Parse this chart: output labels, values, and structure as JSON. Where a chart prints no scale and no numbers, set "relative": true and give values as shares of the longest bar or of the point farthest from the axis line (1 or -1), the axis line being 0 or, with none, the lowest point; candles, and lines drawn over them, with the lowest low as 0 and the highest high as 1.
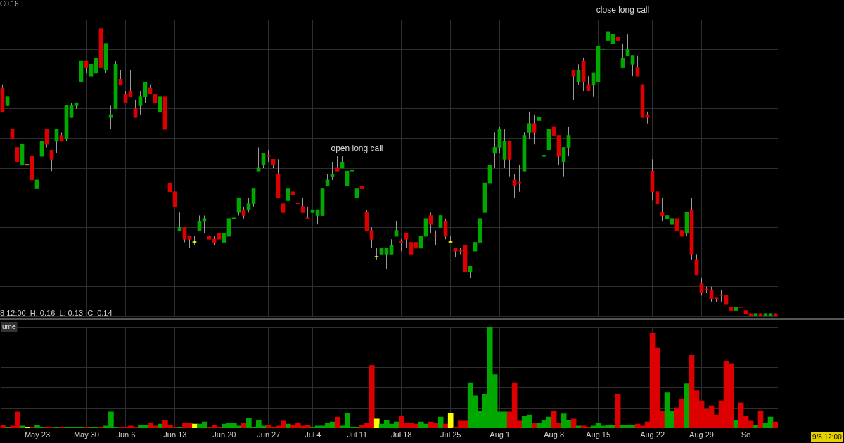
{
  "chart_data": [
    {
      "type": "candlestick",
      "relative": true,
      "tick_labels": false,
      "grid": true,
      "legend": false,
      "color": "#9a9a9a",
      "categories": [
        null,
        null,
        null,
        null,
        null,
        null,
        null,
        null,
        null,
        null,
        null,
        null,
        null,
        null,
        null,
        null,
        null,
        null,
        null,
        null,
        null,
        null,
        null,
        null,
        null,
        null,
        null,
        null,
        null,
        null,
        null,
        null,
        null,
        null,
        null,
        null,
        null,
        null,
        null,
        null,
        null,
        null,
        null,
        null,
        null,
        null,
        null,
        null,
        null,
        null,
        null,
        null,
        null,
        null,
        null,
        null,
        null,
        null,
        null,
        null,
        null,
        null,
        null,
        null,
        null,
        null,
        null,
        null,
        null,
        null,
        null,
        null,
        null,
        null,
        null,
        null,
        null,
        null,
        null,
        null,
        null,
        null,
        null,
        null,
        null,
        null,
        null,
        null,
        null,
        null,
        null,
        null,
        null,
        null,
        null,
        null,
        null,
        null,
        null,
        null,
        null,
        null,
        null,
        null,
        null,
        null,
        null,
        null,
        null,
        null,
        null,
        null,
        null,
        null,
        null,
        null,
        null,
        null,
        null,
        null,
        null,
        null,
        null,
        null,
        null,
        null,
        null,
        null,
        null,
        null,
        null,
        null,
        null,
        null,
        null,
        null,
        null,
        null,
        null,
        null,
        null,
        null,
        null,
        null,
        null,
        null,
        null,
        null,
        null,
        null,
        null,
        null,
        null,
        null,
        null,
        null,
        null,
        null
      ],
      "ohlc": [
        [
          0.77,
          0.78,
          0.69,
          0.69
        ],
        [
          0.71,
          0.74,
          0.71,
          0.74
        ],
        [
          0.63,
          0.63,
          0.6,
          0.6
        ],
        [
          0.57,
          0.57,
          0.52,
          0.52
        ],
        [
          0.51,
          0.58,
          0.51,
          0.58
        ],
        [
          0.51,
          0.51,
          0.49,
          0.51
        ],
        [
          0.54,
          0.56,
          0.46,
          0.46
        ],
        [
          0.43,
          0.46,
          0.4,
          0.46
        ],
        [
          0.54,
          0.59,
          0.54,
          0.59
        ],
        [
          0.63,
          0.63,
          0.57,
          0.58
        ],
        [
          0.56,
          0.56,
          0.49,
          0.53
        ],
        [
          0.59,
          0.63,
          0.55,
          0.63
        ],
        [
          0.61,
          0.62,
          0.59,
          0.59
        ],
        [
          0.6,
          0.71,
          0.59,
          0.71
        ],
        [
          0.67,
          0.72,
          0.67,
          0.71
        ],
        [
          0.71,
          0.72,
          0.7,
          0.72
        ],
        [
          0.79,
          0.86,
          0.79,
          0.86
        ],
        [
          0.86,
          0.86,
          0.82,
          0.84
        ],
        [
          0.81,
          0.85,
          0.79,
          0.85
        ],
        [
          0.82,
          0.87,
          0.82,
          0.87
        ],
        [
          0.97,
          0.99,
          0.82,
          0.84
        ],
        [
          0.83,
          0.92,
          0.82,
          0.92
        ],
        [
          0.67,
          0.71,
          0.63,
          0.68
        ],
        [
          0.7,
          0.86,
          0.7,
          0.85
        ],
        [
          0.8,
          0.83,
          0.78,
          0.78
        ],
        [
          0.75,
          0.76,
          0.72,
          0.72
        ],
        [
          0.76,
          0.83,
          0.74,
          0.74
        ],
        [
          0.7,
          0.73,
          0.67,
          0.67
        ],
        [
          0.71,
          0.76,
          0.68,
          0.74
        ],
        [
          0.74,
          0.79,
          0.72,
          0.79
        ],
        [
          0.77,
          0.78,
          0.75,
          0.75
        ],
        [
          0.75,
          0.76,
          0.7,
          0.72
        ],
        [
          0.69,
          0.77,
          0.67,
          0.74
        ],
        [
          0.74,
          0.75,
          0.63,
          0.63
        ],
        [
          0.45,
          0.46,
          0.4,
          0.42
        ],
        [
          0.42,
          0.42,
          0.37,
          0.37
        ],
        [
          0.29,
          0.35,
          0.29,
          0.3
        ],
        [
          0.3,
          0.3,
          0.25,
          0.26
        ],
        [
          0.27,
          0.27,
          0.23,
          0.26
        ],
        [
          0.25,
          0.27,
          0.24,
          0.25
        ],
        [
          0.29,
          0.34,
          0.29,
          0.32
        ],
        [
          0.32,
          0.34,
          0.28,
          0.33
        ],
        [
          0.27,
          0.27,
          0.26,
          0.26
        ],
        [
          0.26,
          0.27,
          0.24,
          0.25
        ],
        [
          0.28,
          0.3,
          0.25,
          0.26
        ],
        [
          0.25,
          0.3,
          0.25,
          0.28
        ],
        [
          0.27,
          0.34,
          0.27,
          0.33
        ],
        [
          0.33,
          0.35,
          0.31,
          0.33
        ],
        [
          0.35,
          0.4,
          0.34,
          0.4
        ],
        [
          0.36,
          0.37,
          0.33,
          0.34
        ],
        [
          0.36,
          0.4,
          0.35,
          0.38
        ],
        [
          0.38,
          0.43,
          0.37,
          0.43
        ],
        [
          0.49,
          0.57,
          0.49,
          0.5
        ],
        [
          0.51,
          0.55,
          0.5,
          0.55
        ],
        [
          0.54,
          0.56,
          0.52,
          0.54
        ],
        [
          0.53,
          0.53,
          0.5,
          0.51
        ],
        [
          0.48,
          0.53,
          0.4,
          0.4
        ],
        [
          0.38,
          0.39,
          0.35,
          0.35
        ],
        [
          0.39,
          0.45,
          0.39,
          0.43
        ],
        [
          0.42,
          0.43,
          0.4,
          0.41
        ],
        [
          0.38,
          0.4,
          0.32,
          0.38
        ],
        [
          0.37,
          0.4,
          0.35,
          0.35
        ],
        [
          0.33,
          0.37,
          0.33,
          0.33
        ],
        [
          0.35,
          0.36,
          0.35,
          0.36
        ],
        [
          0.34,
          0.36,
          0.31,
          0.36
        ],
        [
          0.34,
          0.43,
          0.34,
          0.43
        ],
        [
          0.44,
          0.48,
          0.44,
          0.46
        ],
        [
          0.47,
          0.52,
          0.46,
          0.48
        ],
        [
          0.5,
          0.54,
          0.49,
          0.49
        ],
        [
          0.5,
          0.54,
          0.5,
          0.52
        ],
        [
          0.44,
          0.49,
          0.41,
          0.49
        ],
        [
          0.49,
          0.49,
          0.45,
          0.49
        ],
        [
          0.4,
          0.44,
          0.39,
          0.43
        ],
        [
          0.44,
          0.44,
          0.43,
          0.43
        ],
        [
          0.35,
          0.36,
          0.29,
          0.29
        ],
        [
          0.29,
          0.3,
          0.23,
          0.26
        ],
        [
          0.2,
          0.23,
          0.19,
          0.2
        ],
        [
          0.21,
          0.23,
          0.21,
          0.23
        ],
        [
          0.21,
          0.23,
          0.16,
          0.23
        ],
        [
          0.21,
          0.26,
          0.21,
          0.24
        ],
        [
          0.27,
          0.32,
          0.27,
          0.29
        ],
        [
          0.25,
          0.26,
          0.22,
          0.25
        ],
        [
          0.28,
          0.28,
          0.23,
          0.26
        ],
        [
          0.25,
          0.26,
          0.2,
          0.21
        ],
        [
          0.25,
          0.25,
          0.19,
          0.23
        ],
        [
          0.23,
          0.28,
          0.23,
          0.27
        ],
        [
          0.27,
          0.33,
          0.27,
          0.33
        ],
        [
          0.34,
          0.35,
          0.28,
          0.31
        ],
        [
          0.27,
          0.29,
          0.24,
          0.27
        ],
        [
          0.3,
          0.34,
          0.3,
          0.34
        ],
        [
          0.32,
          0.33,
          0.26,
          0.27
        ],
        [
          0.25,
          0.27,
          0.25,
          0.25
        ],
        [
          0.23,
          0.23,
          0.2,
          0.22
        ],
        [
          0.22,
          0.23,
          0.21,
          0.22
        ],
        [
          0.24,
          0.24,
          0.15,
          0.15
        ],
        [
          0.15,
          0.17,
          0.13,
          0.17
        ],
        [
          0.22,
          0.28,
          0.19,
          0.25
        ],
        [
          0.25,
          0.34,
          0.23,
          0.33
        ],
        [
          0.35,
          0.48,
          0.31,
          0.45
        ],
        [
          0.45,
          0.55,
          0.43,
          0.51
        ],
        [
          0.55,
          0.62,
          0.5,
          0.57
        ],
        [
          0.57,
          0.64,
          0.55,
          0.63
        ],
        [
          0.53,
          0.63,
          0.5,
          0.59
        ],
        [
          0.59,
          0.59,
          0.47,
          0.53
        ],
        [
          0.46,
          0.48,
          0.4,
          0.44
        ],
        [
          0.45,
          0.51,
          0.42,
          0.45
        ],
        [
          0.49,
          0.62,
          0.49,
          0.61
        ],
        [
          0.62,
          0.69,
          0.6,
          0.65
        ],
        [
          0.65,
          0.68,
          0.58,
          0.62
        ],
        [
          0.66,
          0.69,
          0.62,
          0.67
        ],
        [
          0.54,
          0.67,
          0.54,
          0.54
        ],
        [
          0.56,
          0.63,
          0.56,
          0.63
        ],
        [
          0.64,
          0.72,
          0.57,
          0.61
        ],
        [
          0.61,
          0.61,
          0.51,
          0.54
        ],
        [
          0.52,
          0.57,
          0.47,
          0.57
        ],
        [
          0.57,
          0.64,
          0.54,
          0.61
        ],
        [
          0.83,
          0.83,
          0.73,
          0.81
        ],
        [
          0.79,
          0.85,
          0.78,
          0.83
        ],
        [
          0.86,
          0.87,
          0.76,
          0.79
        ],
        [
          0.78,
          0.81,
          0.76,
          0.76
        ],
        [
          0.78,
          0.82,
          0.74,
          0.82
        ],
        [
          0.79,
          0.91,
          0.79,
          0.91
        ],
        [
          0.9,
          0.93,
          0.85,
          0.9
        ],
        [
          0.93,
          1.0,
          0.93,
          0.96
        ],
        [
          0.92,
          0.95,
          0.85,
          0.95
        ],
        [
          0.94,
          0.98,
          0.86,
          0.93
        ],
        [
          0.84,
          0.92,
          0.84,
          0.87
        ],
        [
          0.88,
          0.95,
          0.88,
          0.9
        ],
        [
          0.85,
          0.88,
          0.81,
          0.88
        ],
        [
          0.84,
          0.88,
          0.81,
          0.81
        ],
        [
          0.78,
          0.78,
          0.67,
          0.67
        ],
        [
          0.68,
          0.69,
          0.65,
          0.67
        ],
        [
          0.49,
          0.53,
          0.39,
          0.42
        ],
        [
          0.42,
          0.42,
          0.38,
          0.38
        ],
        [
          0.35,
          0.4,
          0.32,
          0.34
        ],
        [
          0.33,
          0.36,
          0.32,
          0.34
        ],
        [
          0.31,
          0.33,
          0.29,
          0.33
        ],
        [
          0.33,
          0.33,
          0.29,
          0.29
        ],
        [
          0.29,
          0.31,
          0.26,
          0.27
        ],
        [
          0.28,
          0.35,
          0.27,
          0.35
        ],
        [
          0.36,
          0.4,
          0.19,
          0.21
        ],
        [
          0.19,
          0.21,
          0.14,
          0.14
        ],
        [
          0.11,
          0.13,
          0.07,
          0.08
        ],
        [
          0.09,
          0.1,
          0.08,
          0.09
        ],
        [
          0.09,
          0.1,
          0.05,
          0.06
        ],
        [
          0.06,
          0.06,
          0.05,
          0.06
        ],
        [
          0.07,
          0.09,
          0.05,
          0.07
        ],
        [
          0.07,
          0.07,
          0.04,
          0.04
        ],
        [
          0.03,
          0.03,
          0.02,
          0.02
        ],
        [
          0.02,
          0.03,
          0.02,
          0.03
        ],
        [
          0.03,
          0.04,
          0.02,
          0.03
        ],
        [
          0.02,
          0.02,
          0.0,
          0.01
        ],
        [
          0.01,
          0.01,
          0.0,
          0.0
        ],
        [
          0.0,
          0.01,
          0.0,
          0.01
        ],
        [
          0.01,
          0.01,
          0.0,
          0.0
        ],
        [
          0.0,
          0.01,
          0.0,
          0.01
        ],
        [
          0.0,
          0.01,
          0.0,
          0.01
        ],
        [
          0.01,
          0.01,
          0.0,
          0.0
        ]
      ],
      "colors": [
        "#dd0000",
        "#00a800",
        "#dd0000",
        "#dd0000",
        "#00a800",
        "#ffff00",
        "#dd0000",
        "#00a800",
        "#00a800",
        "#dd0000",
        "#dd0000",
        "#00a800",
        "#dd0000",
        "#00a800",
        "#00a800",
        "#00a800",
        "#00a800",
        "#dd0000",
        "#00a800",
        "#00a800",
        "#dd0000",
        "#00a800",
        "#00a800",
        "#00a800",
        "#dd0000",
        "#dd0000",
        "#dd0000",
        "#dd0000",
        "#00a800",
        "#00a800",
        "#dd0000",
        "#dd0000",
        "#00a800",
        "#dd0000",
        "#dd0000",
        "#dd0000",
        "#00a800",
        "#dd0000",
        "#dd0000",
        "#ffff00",
        "#00a800",
        "#00a800",
        "#dd0000",
        "#dd0000",
        "#dd0000",
        "#00a800",
        "#00a800",
        "#00a800",
        "#00a800",
        "#dd0000",
        "#00a800",
        "#00a800",
        "#00a800",
        "#00a800",
        "#dd0000",
        "#dd0000",
        "#dd0000",
        "#dd0000",
        "#00a800",
        "#dd0000",
        "#dd0000",
        "#dd0000",
        "#dd0000",
        "#00a800",
        "#00a800",
        "#00a800",
        "#00a800",
        "#00a800",
        "#dd0000",
        "#00a800",
        "#00a800",
        "#00a800",
        "#00a800",
        "#dd0000",
        "#dd0000",
        "#dd0000",
        "#ffff00",
        "#00a800",
        "#00a800",
        "#00a800",
        "#00a800",
        "#dd0000",
        "#dd0000",
        "#dd0000",
        "#dd0000",
        "#00a800",
        "#00a800",
        "#dd0000",
        "#dd0000",
        "#00a800",
        "#dd0000",
        "#ffff00",
        "#dd0000",
        "#dd0000",
        "#dd0000",
        "#00a800",
        "#00a800",
        "#00a800",
        "#00a800",
        "#00a800",
        "#00a800",
        "#00a800",
        "#00a800",
        "#dd0000",
        "#dd0000",
        "#dd0000",
        "#00a800",
        "#00a800",
        "#dd0000",
        "#00a800",
        "#00a800",
        "#00a800",
        "#dd0000",
        "#dd0000",
        "#00a800",
        "#00a800",
        "#dd0000",
        "#00a800",
        "#dd0000",
        "#dd0000",
        "#00a800",
        "#00a800",
        "#00a800",
        "#00a800",
        "#00a800",
        "#dd0000",
        "#00a800",
        "#00a800",
        "#00a800",
        "#dd0000",
        "#dd0000",
        "#dd0000",
        "#dd0000",
        "#dd0000",
        "#dd0000",
        "#00a800",
        "#00a800",
        "#dd0000",
        "#dd0000",
        "#00a800",
        "#dd0000",
        "#dd0000",
        "#dd0000",
        "#dd0000",
        "#dd0000",
        "#dd0000",
        "#dd0000",
        "#dd0000",
        "#dd0000",
        "#00a800",
        "#dd0000",
        "#dd0000",
        "#dd0000",
        "#00a800",
        "#dd0000",
        "#00a800",
        "#00a800",
        "#dd0000"
      ],
      "annotations": [
        "C0.16",
        "8 12:00  H: 0.16  L: 0.13  C: 0.14",
        "open long call",
        "close long call"
      ]
    },
    {
      "type": "bar",
      "relative": true,
      "grid": true,
      "legend": false,
      "categories": [
        null,
        null,
        null,
        null,
        null,
        null,
        null,
        "May 23",
        null,
        null,
        null,
        null,
        null,
        null,
        null,
        null,
        null,
        "May 30",
        null,
        null,
        null,
        null,
        null,
        null,
        null,
        "Jun 6",
        null,
        null,
        null,
        null,
        null,
        null,
        null,
        null,
        null,
        "Jun 13",
        null,
        null,
        null,
        null,
        null,
        null,
        null,
        null,
        null,
        "Jun 20",
        null,
        null,
        null,
        null,
        null,
        null,
        null,
        null,
        "Jun 27",
        null,
        null,
        null,
        null,
        null,
        null,
        null,
        null,
        "Jul 4",
        null,
        null,
        null,
        null,
        null,
        null,
        null,
        null,
        "Jul 11",
        null,
        null,
        null,
        null,
        null,
        null,
        null,
        null,
        "Jul 18",
        null,
        null,
        null,
        null,
        null,
        null,
        null,
        null,
        null,
        "Jul 25",
        null,
        null,
        null,
        null,
        null,
        null,
        null,
        null,
        null,
        "Aug 1",
        null,
        null,
        null,
        null,
        null,
        null,
        null,
        null,
        null,
        null,
        "Aug 8",
        null,
        null,
        null,
        null,
        null,
        null,
        null,
        null,
        "Aug 15",
        null,
        null,
        null,
        null,
        null,
        null,
        null,
        null,
        null,
        null,
        "Aug 22",
        null,
        null,
        null,
        null,
        null,
        null,
        null,
        null,
        null,
        "Aug 29",
        null,
        null,
        null,
        null,
        null,
        null,
        null,
        null,
        "Se",
        null,
        null,
        null,
        null,
        null,
        null
      ],
      "values": [
        0.03,
        0.01,
        0.02,
        0.16,
        0.02,
        0.01,
        0.01,
        0.03,
        0.01,
        0.01,
        0.01,
        0.01,
        0.01,
        0.01,
        0.01,
        0.01,
        0.01,
        0.01,
        0.01,
        0.01,
        0.01,
        0.02,
        0.16,
        0.01,
        0.01,
        0.01,
        0.02,
        0.01,
        0.03,
        0.03,
        0.05,
        0.02,
        0.04,
        0.08,
        0.03,
        0.01,
        0.01,
        0.05,
        0.05,
        0.04,
        0.04,
        0.06,
        0.01,
        0.03,
        0.01,
        0.04,
        0.05,
        0.05,
        0.02,
        0.05,
        0.1,
        0.01,
        0.08,
        0.02,
        0.03,
        0.01,
        0.02,
        0.07,
        0.04,
        0.03,
        0.05,
        0.02,
        0.03,
        0.01,
        0.02,
        0.02,
        0.05,
        0.06,
        0.11,
        0.02,
        0.15,
        0.01,
        0.01,
        0.03,
        0.05,
        0.62,
        0.09,
        0.04,
        0.08,
        0.04,
        0.06,
        0.12,
        0.05,
        0.05,
        0.04,
        0.06,
        0.04,
        0.06,
        0.05,
        0.11,
        0.04,
        0.15,
        0.01,
        0.07,
        0.07,
        0.45,
        0.32,
        0.17,
        0.33,
        1.0,
        0.53,
        0.16,
        0.16,
        0.16,
        0.45,
        0.07,
        0.12,
        0.13,
        0.05,
        0.05,
        0.08,
        0.11,
        0.17,
        0.05,
        0.14,
        0.08,
        0.09,
        0.02,
        0.02,
        0.01,
        0.02,
        0.05,
        0.02,
        0.03,
        0.03,
        0.33,
        0.03,
        0.03,
        0.03,
        0.04,
        0.02,
        0.06,
        0.94,
        0.79,
        0.17,
        0.35,
        0.17,
        0.2,
        0.29,
        0.44,
        0.72,
        0.37,
        0.27,
        0.19,
        0.22,
        0.13,
        0.27,
        0.66,
        0.64,
        0.08,
        0.25,
        0.12,
        0.07,
        0.03,
        0.17,
        0.05,
        0.11,
        0.06
      ],
      "colors": [
        "#dd0000",
        "#00a800",
        "#dd0000",
        "#dd0000",
        "#00a800",
        "#ffff00",
        "#dd0000",
        "#00a800",
        "#00a800",
        "#dd0000",
        "#dd0000",
        "#00a800",
        "#dd0000",
        "#00a800",
        "#00a800",
        "#00a800",
        "#00a800",
        "#dd0000",
        "#00a800",
        "#00a800",
        "#dd0000",
        "#00a800",
        "#00a800",
        "#00a800",
        "#dd0000",
        "#dd0000",
        "#dd0000",
        "#dd0000",
        "#00a800",
        "#00a800",
        "#dd0000",
        "#dd0000",
        "#00a800",
        "#dd0000",
        "#dd0000",
        "#dd0000",
        "#00a800",
        "#dd0000",
        "#dd0000",
        "#ffff00",
        "#00a800",
        "#00a800",
        "#dd0000",
        "#dd0000",
        "#dd0000",
        "#00a800",
        "#00a800",
        "#00a800",
        "#00a800",
        "#dd0000",
        "#00a800",
        "#00a800",
        "#00a800",
        "#00a800",
        "#dd0000",
        "#dd0000",
        "#dd0000",
        "#dd0000",
        "#00a800",
        "#dd0000",
        "#dd0000",
        "#dd0000",
        "#dd0000",
        "#00a800",
        "#00a800",
        "#00a800",
        "#00a800",
        "#00a800",
        "#dd0000",
        "#00a800",
        "#00a800",
        "#00a800",
        "#00a800",
        "#dd0000",
        "#dd0000",
        "#dd0000",
        "#ffff00",
        "#00a800",
        "#00a800",
        "#00a800",
        "#00a800",
        "#dd0000",
        "#dd0000",
        "#dd0000",
        "#dd0000",
        "#00a800",
        "#00a800",
        "#dd0000",
        "#dd0000",
        "#00a800",
        "#dd0000",
        "#ffff00",
        "#dd0000",
        "#dd0000",
        "#dd0000",
        "#00a800",
        "#00a800",
        "#00a800",
        "#00a800",
        "#00a800",
        "#00a800",
        "#00a800",
        "#00a800",
        "#dd0000",
        "#dd0000",
        "#dd0000",
        "#00a800",
        "#00a800",
        "#dd0000",
        "#00a800",
        "#00a800",
        "#00a800",
        "#dd0000",
        "#dd0000",
        "#00a800",
        "#00a800",
        "#dd0000",
        "#00a800",
        "#dd0000",
        "#dd0000",
        "#00a800",
        "#00a800",
        "#00a800",
        "#00a800",
        "#00a800",
        "#dd0000",
        "#00a800",
        "#00a800",
        "#00a800",
        "#dd0000",
        "#dd0000",
        "#dd0000",
        "#dd0000",
        "#dd0000",
        "#dd0000",
        "#00a800",
        "#00a800",
        "#dd0000",
        "#dd0000",
        "#00a800",
        "#dd0000",
        "#dd0000",
        "#dd0000",
        "#dd0000",
        "#dd0000",
        "#dd0000",
        "#dd0000",
        "#dd0000",
        "#dd0000",
        "#00a800",
        "#dd0000",
        "#dd0000",
        "#dd0000",
        "#00a800",
        "#dd0000",
        "#00a800",
        "#00a800",
        "#dd0000"
      ],
      "annotations": [
        "ume",
        "9/8 12:00"
      ]
    }
  ]
}
